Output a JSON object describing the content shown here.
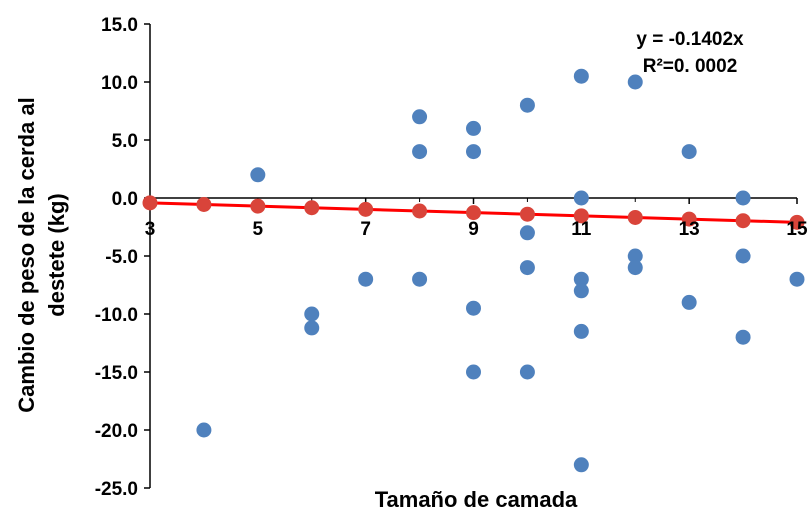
{
  "chart_data": {
    "type": "scatter",
    "title": "",
    "xlabel": "Tamaño de camada",
    "ylabel": "Cambio de peso de la cerda al destete (kg)",
    "ylabel_lines": [
      "Cambio de peso de la cerda al",
      "destete (kg)"
    ],
    "xlim": [
      3,
      15
    ],
    "ylim": [
      -25,
      15
    ],
    "x_ticks": [
      3,
      5,
      7,
      9,
      11,
      13,
      15
    ],
    "y_ticks": [
      15,
      10,
      5,
      0,
      -5,
      -10,
      -15,
      -20,
      -25
    ],
    "x_tick_labels": [
      "3",
      "5",
      "7",
      "9",
      "11",
      "13",
      "15"
    ],
    "y_tick_labels": [
      "15.0",
      "10.0",
      "5.0",
      "0.0",
      "-5.0",
      "-10.0",
      "-15.0",
      "-20.0",
      "-25.0"
    ],
    "grid": false,
    "legend": "none",
    "annotation": [
      "y = -0.1402x",
      "R²=0. 0002"
    ],
    "colors": {
      "points": "#4f81bd",
      "trend_points": "#d9443a",
      "trend_line": "#ff0000",
      "axis": "#000000"
    },
    "series": [
      {
        "values_xy": [
          [
            4,
            -20
          ],
          [
            5,
            2
          ],
          [
            6,
            -10
          ],
          [
            6,
            -11.2
          ],
          [
            7,
            -7
          ],
          [
            8,
            7
          ],
          [
            8,
            4
          ],
          [
            8,
            -7
          ],
          [
            9,
            6
          ],
          [
            9,
            4
          ],
          [
            9,
            -9.5
          ],
          [
            9,
            -15
          ],
          [
            10,
            8
          ],
          [
            10,
            -3
          ],
          [
            10,
            -6
          ],
          [
            10,
            -15
          ],
          [
            11,
            10.5
          ],
          [
            11,
            0
          ],
          [
            11,
            -7
          ],
          [
            11,
            -8
          ],
          [
            11,
            -11.5
          ],
          [
            11,
            -23
          ],
          [
            12,
            10
          ],
          [
            12,
            -5
          ],
          [
            12,
            -6
          ],
          [
            13,
            4
          ],
          [
            13,
            -9
          ],
          [
            14,
            0
          ],
          [
            14,
            -5
          ],
          [
            14,
            -12
          ],
          [
            15,
            -7
          ]
        ]
      },
      {
        "style": "trend",
        "values_xy": [
          [
            3,
            -0.42
          ],
          [
            4,
            -0.56
          ],
          [
            5,
            -0.7
          ],
          [
            6,
            -0.84
          ],
          [
            7,
            -0.98
          ],
          [
            8,
            -1.12
          ],
          [
            9,
            -1.26
          ],
          [
            10,
            -1.4
          ],
          [
            11,
            -1.54
          ],
          [
            12,
            -1.68
          ],
          [
            13,
            -1.82
          ],
          [
            14,
            -1.96
          ],
          [
            15,
            -2.1
          ]
        ]
      }
    ]
  }
}
